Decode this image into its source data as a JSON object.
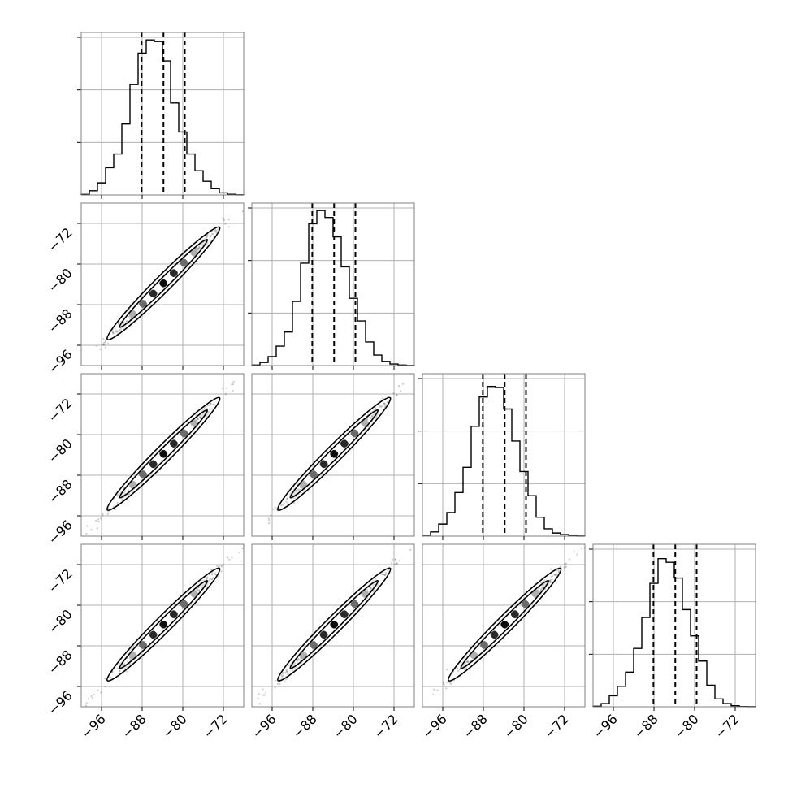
{
  "chart_data": {
    "type": "corner",
    "title": "",
    "n_params": 4,
    "grid": true,
    "axis_range": [
      -100,
      -68
    ],
    "ticks": [
      -96,
      -88,
      -80,
      -72
    ],
    "tick_labels": [
      "−96",
      "−88",
      "−80",
      "−72"
    ],
    "quantiles": [
      -88.1,
      -83.8,
      -79.6
    ],
    "bin_edges": [
      -100,
      -98.4,
      -96.8,
      -95.2,
      -93.6,
      -92,
      -90.4,
      -88.8,
      -87.2,
      -85.6,
      -84,
      -82.4,
      -80.8,
      -79.2,
      -77.6,
      -76,
      -74.4,
      -72.8,
      -71.2,
      -69.6,
      -68
    ],
    "hist_max": 3000,
    "histograms": [
      {
        "counts": [
          10,
          80,
          230,
          520,
          780,
          1350,
          2100,
          2700,
          2950,
          2920,
          2550,
          1750,
          1200,
          780,
          460,
          260,
          120,
          40,
          12,
          2
        ]
      },
      {
        "counts": [
          10,
          60,
          170,
          370,
          640,
          1220,
          1950,
          2700,
          2950,
          2820,
          2450,
          1880,
          1280,
          850,
          450,
          200,
          80,
          30,
          10,
          2
        ]
      },
      {
        "counts": [
          20,
          80,
          230,
          450,
          830,
          1310,
          2090,
          2650,
          2850,
          2830,
          2420,
          1810,
          1230,
          770,
          360,
          140,
          60,
          30,
          10,
          2
        ]
      },
      {
        "counts": [
          10,
          60,
          210,
          390,
          660,
          1110,
          1700,
          2350,
          2820,
          2750,
          2450,
          1850,
          1350,
          870,
          410,
          150,
          60,
          20,
          5,
          2
        ]
      }
    ],
    "correlation": 0.995,
    "contour_levels": [
      0.39,
      0.86
    ]
  }
}
